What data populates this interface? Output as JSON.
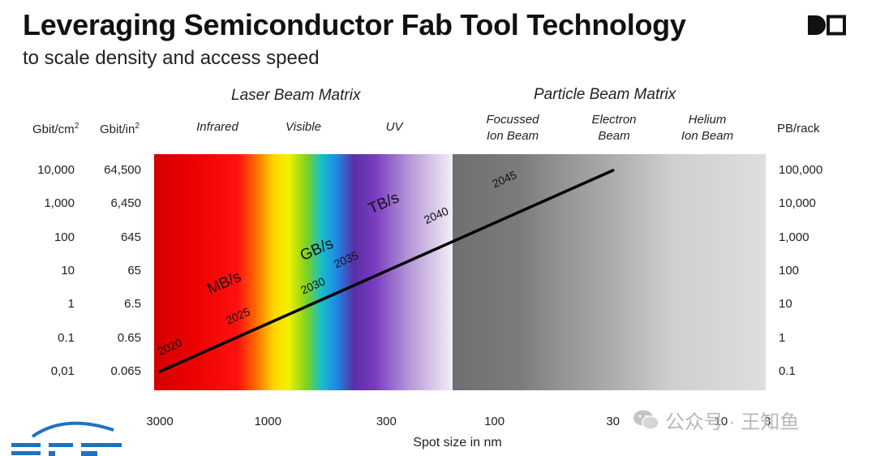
{
  "title": "Leveraging Semiconductor Fab Tool Technology",
  "subtitle": "to scale density and access speed",
  "headers": {
    "gbit_cm2": "Gbit/cm",
    "gbit_in2": "Gbit/in",
    "sup": "2",
    "pb_rack": "PB/rack"
  },
  "groups": {
    "laser": "Laser Beam Matrix",
    "particle": "Particle Beam Matrix"
  },
  "bands": {
    "infrared": "Infrared",
    "visible": "Visible",
    "uv": "UV",
    "fib_1": "Focussed",
    "fib_2": "Ion Beam",
    "eb_1": "Electron",
    "eb_2": "Beam",
    "hib_1": "Helium",
    "hib_2": "Ion Beam"
  },
  "watermark": "公众号 · 王知鱼",
  "chart_data": {
    "type": "line",
    "title": "Leveraging Semiconductor Fab Tool Technology",
    "subtitle": "to scale density and access speed",
    "xlabel": "Spot size in nm",
    "x_scale": "log",
    "x_reversed": true,
    "x_ticks": [
      "3000",
      "1000",
      "300",
      "100",
      "30",
      "10",
      "3"
    ],
    "x_tick_values": [
      3000,
      1000,
      300,
      100,
      30,
      10,
      3
    ],
    "xlim": [
      3000,
      3
    ],
    "y_scale": "log",
    "ylabel_left": "Gbit/cm2",
    "ylabel_left2": "Gbit/in2",
    "ylabel_right": "PB/rack",
    "y_ticks_cm2": [
      "10,000",
      "1,000",
      "100",
      "10",
      "1",
      "0.1",
      "0,01"
    ],
    "y_ticks_in2": [
      "64,500",
      "6,450",
      "645",
      "65",
      "6.5",
      "0.65",
      "0.065"
    ],
    "y_ticks_pb": [
      "100,000",
      "10,000",
      "1,000",
      "100",
      "10",
      "1",
      "0.1"
    ],
    "y_tick_values_cm2": [
      10000,
      1000,
      100,
      10,
      1,
      0.1,
      0.01
    ],
    "ylim_cm2": [
      0.01,
      10000
    ],
    "series": [
      {
        "x": [
          3000,
          30
        ],
        "y": [
          0.01,
          10000
        ],
        "color": "#000000"
      }
    ],
    "year_labels": [
      {
        "text": "2020",
        "x": 3000,
        "y": 0.03
      },
      {
        "text": "2025",
        "x": 1500,
        "y": 0.25
      },
      {
        "text": "2030",
        "x": 700,
        "y": 2.0
      },
      {
        "text": "2035",
        "x": 500,
        "y": 12
      },
      {
        "text": "2040",
        "x": 200,
        "y": 250
      },
      {
        "text": "2045",
        "x": 100,
        "y": 3000
      }
    ],
    "speed_labels": [
      {
        "text": "MB/s",
        "x": 1800,
        "y": 2
      },
      {
        "text": "GB/s",
        "x": 700,
        "y": 20
      },
      {
        "text": "TB/s",
        "x": 350,
        "y": 500
      }
    ],
    "regions": [
      {
        "name": "Infrared",
        "group": "Laser Beam Matrix"
      },
      {
        "name": "Visible",
        "group": "Laser Beam Matrix"
      },
      {
        "name": "UV",
        "group": "Laser Beam Matrix"
      },
      {
        "name": "Focussed Ion Beam",
        "group": "Particle Beam Matrix"
      },
      {
        "name": "Electron Beam",
        "group": "Particle Beam Matrix"
      },
      {
        "name": "Helium Ion Beam",
        "group": "Particle Beam Matrix"
      }
    ],
    "legend": "none",
    "grid": false
  }
}
